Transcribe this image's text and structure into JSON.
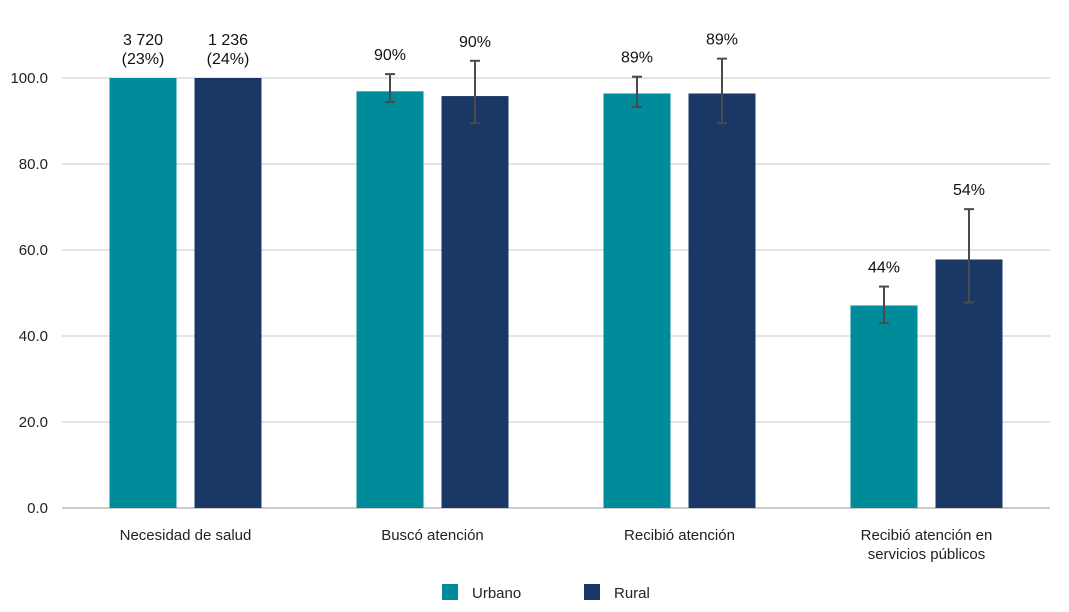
{
  "chart_data": {
    "type": "bar",
    "title": "",
    "xlabel": "",
    "ylabel": "",
    "ylim": [
      0,
      100
    ],
    "yticks": [
      "0.0",
      "20.0",
      "40.0",
      "60.0",
      "80.0",
      "100.0"
    ],
    "ytick_values": [
      0,
      20,
      40,
      60,
      80,
      100
    ],
    "grid": true,
    "legend_position": "bottom-center",
    "categories": [
      [
        "Necesidad de salud"
      ],
      [
        "Buscó atención"
      ],
      [
        "Recibió atención"
      ],
      [
        "Recibió atención en",
        "servicios públicos"
      ]
    ],
    "series": [
      {
        "name": "Urbano",
        "color": "#008b9a",
        "values": [
          100,
          96.9,
          96.4,
          47.1
        ],
        "error_low": [
          null,
          94.4,
          93.3,
          43.0
        ],
        "error_high": [
          null,
          100.9,
          100.3,
          51.5
        ],
        "labels": [
          [
            "3 720",
            "(23%)"
          ],
          [
            "90%"
          ],
          [
            "89%"
          ],
          [
            "44%"
          ]
        ]
      },
      {
        "name": "Rural",
        "color": "#1a3866",
        "values": [
          100,
          95.8,
          96.4,
          57.8
        ],
        "error_low": [
          null,
          89.5,
          89.5,
          47.8
        ],
        "error_high": [
          null,
          104.0,
          104.5,
          69.5
        ],
        "labels": [
          [
            "1 236",
            "(24%)"
          ],
          [
            "90%"
          ],
          [
            "89%"
          ],
          [
            "54%"
          ]
        ]
      }
    ]
  }
}
